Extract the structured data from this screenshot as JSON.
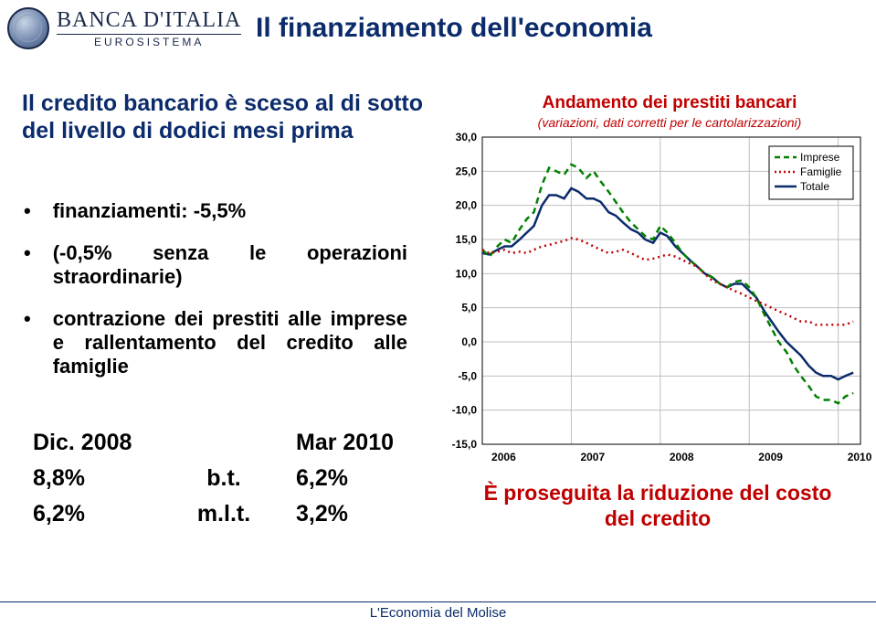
{
  "logo": {
    "main": "BANCA D'ITALIA",
    "sub": "EUROSISTEMA"
  },
  "slide_title": "Il finanziamento dell'economia",
  "left_heading": "Il credito bancario è sceso al di sotto  del livello di dodici mesi prima",
  "bullets": [
    "finanziamenti: -5,5%",
    "(-0,5% senza le operazioni straordinarie)",
    "contrazione dei prestiti alle imprese e rallentamento del credito alle famiglie"
  ],
  "table": {
    "header": [
      "Dic. 2008",
      "",
      "Mar 2010"
    ],
    "rows": [
      [
        "8,8%",
        "b.t.",
        "6,2%"
      ],
      [
        "6,2%",
        "m.l.t.",
        "3,2%"
      ]
    ]
  },
  "chart": {
    "title": "Andamento dei prestiti bancari",
    "subtitle": "(variazioni, dati corretti per le cartolarizzazioni)",
    "type": "line",
    "colors": {
      "imprese": "#008000",
      "famiglie": "#c00000",
      "totale": "#0b2b6b",
      "grid": "#bfbfbf",
      "axis": "#000000",
      "background": "#ffffff"
    },
    "yticks": [
      -15.0,
      -10.0,
      -5.0,
      0.0,
      5.0,
      10.0,
      15.0,
      20.0,
      25.0,
      30.0
    ],
    "ytick_labels": [
      "-15,0",
      "-10,0",
      "-5,0",
      "0,0",
      "5,0",
      "10,0",
      "15,0",
      "20,0",
      "25,0",
      "30,0"
    ],
    "ylim": [
      -15,
      30
    ],
    "xticks": [
      2006,
      2007,
      2008,
      2009,
      2010
    ],
    "xlim": [
      2006,
      2010.25
    ],
    "legend": {
      "position": "top-right",
      "items": [
        {
          "label": "Imprese",
          "color": "#008000",
          "dash": "6,4"
        },
        {
          "label": "Famiglie",
          "color": "#c00000",
          "dash": "2,3"
        },
        {
          "label": "Totale",
          "color": "#0b2b6b",
          "dash": ""
        }
      ]
    },
    "line_width": 2.5,
    "series": {
      "imprese": [
        [
          2006.0,
          13.5
        ],
        [
          2006.08,
          12.5
        ],
        [
          2006.17,
          14.0
        ],
        [
          2006.25,
          15.0
        ],
        [
          2006.33,
          14.5
        ],
        [
          2006.42,
          16.5
        ],
        [
          2006.5,
          18.0
        ],
        [
          2006.58,
          19.0
        ],
        [
          2006.67,
          23.0
        ],
        [
          2006.75,
          25.5
        ],
        [
          2006.83,
          25.0
        ],
        [
          2006.92,
          24.5
        ],
        [
          2007.0,
          26.0
        ],
        [
          2007.08,
          25.5
        ],
        [
          2007.17,
          24.0
        ],
        [
          2007.25,
          25.0
        ],
        [
          2007.33,
          23.5
        ],
        [
          2007.42,
          22.0
        ],
        [
          2007.5,
          20.5
        ],
        [
          2007.58,
          19.0
        ],
        [
          2007.67,
          17.5
        ],
        [
          2007.75,
          16.5
        ],
        [
          2007.83,
          15.5
        ],
        [
          2007.92,
          15.0
        ],
        [
          2008.0,
          17.0
        ],
        [
          2008.08,
          16.0
        ],
        [
          2008.17,
          14.5
        ],
        [
          2008.25,
          13.0
        ],
        [
          2008.33,
          12.0
        ],
        [
          2008.42,
          11.0
        ],
        [
          2008.5,
          10.0
        ],
        [
          2008.58,
          9.5
        ],
        [
          2008.67,
          8.5
        ],
        [
          2008.75,
          8.0
        ],
        [
          2008.83,
          8.8
        ],
        [
          2008.92,
          9.0
        ],
        [
          2009.0,
          8.0
        ],
        [
          2009.08,
          6.5
        ],
        [
          2009.17,
          4.0
        ],
        [
          2009.25,
          2.0
        ],
        [
          2009.33,
          0.0
        ],
        [
          2009.42,
          -1.5
        ],
        [
          2009.5,
          -3.5
        ],
        [
          2009.58,
          -5.0
        ],
        [
          2009.67,
          -6.5
        ],
        [
          2009.75,
          -8.0
        ],
        [
          2009.83,
          -8.5
        ],
        [
          2009.92,
          -8.5
        ],
        [
          2010.0,
          -9.0
        ],
        [
          2010.08,
          -8.0
        ],
        [
          2010.17,
          -7.5
        ]
      ],
      "famiglie": [
        [
          2006.0,
          13.5
        ],
        [
          2006.08,
          13.0
        ],
        [
          2006.17,
          13.2
        ],
        [
          2006.25,
          13.5
        ],
        [
          2006.33,
          13.0
        ],
        [
          2006.42,
          13.2
        ],
        [
          2006.5,
          13.0
        ],
        [
          2006.58,
          13.5
        ],
        [
          2006.67,
          14.0
        ],
        [
          2006.75,
          14.2
        ],
        [
          2006.83,
          14.5
        ],
        [
          2006.92,
          14.8
        ],
        [
          2007.0,
          15.2
        ],
        [
          2007.08,
          15.0
        ],
        [
          2007.17,
          14.5
        ],
        [
          2007.25,
          14.0
        ],
        [
          2007.33,
          13.5
        ],
        [
          2007.42,
          13.0
        ],
        [
          2007.5,
          13.2
        ],
        [
          2007.58,
          13.5
        ],
        [
          2007.67,
          13.0
        ],
        [
          2007.75,
          12.5
        ],
        [
          2007.83,
          12.0
        ],
        [
          2007.92,
          12.2
        ],
        [
          2008.0,
          12.5
        ],
        [
          2008.08,
          12.8
        ],
        [
          2008.17,
          12.5
        ],
        [
          2008.25,
          12.0
        ],
        [
          2008.33,
          11.5
        ],
        [
          2008.42,
          11.0
        ],
        [
          2008.5,
          10.0
        ],
        [
          2008.58,
          9.0
        ],
        [
          2008.67,
          8.5
        ],
        [
          2008.75,
          8.0
        ],
        [
          2008.83,
          7.5
        ],
        [
          2008.92,
          7.0
        ],
        [
          2009.0,
          6.5
        ],
        [
          2009.08,
          6.0
        ],
        [
          2009.17,
          5.5
        ],
        [
          2009.25,
          5.0
        ],
        [
          2009.33,
          4.5
        ],
        [
          2009.42,
          4.0
        ],
        [
          2009.5,
          3.5
        ],
        [
          2009.58,
          3.0
        ],
        [
          2009.67,
          3.0
        ],
        [
          2009.75,
          2.5
        ],
        [
          2009.83,
          2.5
        ],
        [
          2009.92,
          2.5
        ],
        [
          2010.0,
          2.5
        ],
        [
          2010.08,
          2.5
        ],
        [
          2010.17,
          3.0
        ]
      ],
      "totale": [
        [
          2006.0,
          13.0
        ],
        [
          2006.08,
          12.8
        ],
        [
          2006.17,
          13.5
        ],
        [
          2006.25,
          14.0
        ],
        [
          2006.33,
          14.0
        ],
        [
          2006.42,
          15.0
        ],
        [
          2006.5,
          16.0
        ],
        [
          2006.58,
          17.0
        ],
        [
          2006.67,
          20.0
        ],
        [
          2006.75,
          21.5
        ],
        [
          2006.83,
          21.5
        ],
        [
          2006.92,
          21.0
        ],
        [
          2007.0,
          22.5
        ],
        [
          2007.08,
          22.0
        ],
        [
          2007.17,
          21.0
        ],
        [
          2007.25,
          21.0
        ],
        [
          2007.33,
          20.5
        ],
        [
          2007.42,
          19.0
        ],
        [
          2007.5,
          18.5
        ],
        [
          2007.58,
          17.5
        ],
        [
          2007.67,
          16.5
        ],
        [
          2007.75,
          16.0
        ],
        [
          2007.83,
          15.0
        ],
        [
          2007.92,
          14.5
        ],
        [
          2008.0,
          16.0
        ],
        [
          2008.08,
          15.5
        ],
        [
          2008.17,
          14.0
        ],
        [
          2008.25,
          13.0
        ],
        [
          2008.33,
          12.0
        ],
        [
          2008.42,
          11.0
        ],
        [
          2008.5,
          10.0
        ],
        [
          2008.58,
          9.5
        ],
        [
          2008.67,
          8.5
        ],
        [
          2008.75,
          8.0
        ],
        [
          2008.83,
          8.5
        ],
        [
          2008.92,
          8.5
        ],
        [
          2009.0,
          7.5
        ],
        [
          2009.08,
          6.5
        ],
        [
          2009.17,
          4.5
        ],
        [
          2009.25,
          3.0
        ],
        [
          2009.33,
          1.5
        ],
        [
          2009.42,
          0.0
        ],
        [
          2009.5,
          -1.0
        ],
        [
          2009.58,
          -2.0
        ],
        [
          2009.67,
          -3.5
        ],
        [
          2009.75,
          -4.5
        ],
        [
          2009.83,
          -5.0
        ],
        [
          2009.92,
          -5.0
        ],
        [
          2010.0,
          -5.5
        ],
        [
          2010.08,
          -5.0
        ],
        [
          2010.17,
          -4.5
        ]
      ]
    }
  },
  "bottom_right": "È proseguita la riduzione del costo del credito",
  "footer": "L'Economia del Molise"
}
